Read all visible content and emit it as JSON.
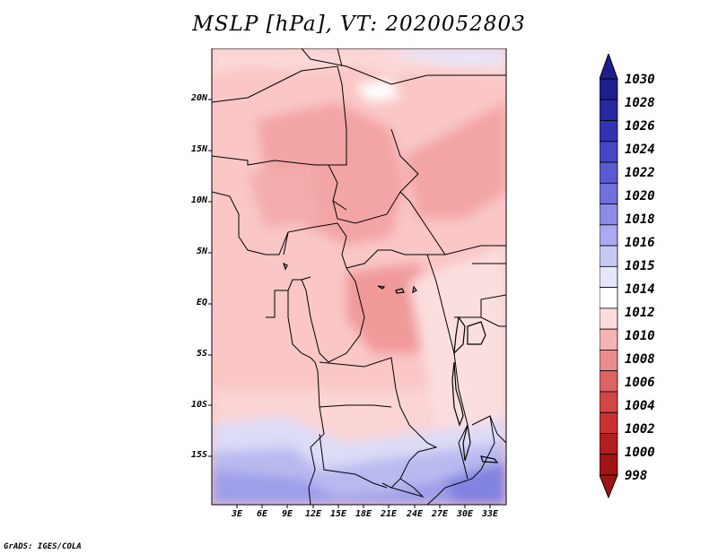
{
  "title": "MSLP [hPa], VT: 2020052803",
  "credit": "GrADS: IGES/COLA",
  "map": {
    "lat_labels": [
      "20N",
      "15N",
      "10N",
      "5N",
      "EQ",
      "5S",
      "10S",
      "15S"
    ],
    "lon_labels": [
      "3E",
      "6E",
      "9E",
      "12E",
      "15E",
      "18E",
      "21E",
      "24E",
      "27E",
      "30E",
      "33E"
    ]
  },
  "colorbar": {
    "labels": [
      "1030",
      "1028",
      "1026",
      "1024",
      "1022",
      "1020",
      "1018",
      "1016",
      "1015",
      "1014",
      "1012",
      "1010",
      "1008",
      "1006",
      "1004",
      "1002",
      "1000",
      "998"
    ],
    "colors": [
      "#1e1e8c",
      "#2828a0",
      "#3232b4",
      "#4646c8",
      "#5a5ad2",
      "#7070dc",
      "#8c8ce6",
      "#aaaaf0",
      "#c8c8f5",
      "#e6e6fa",
      "#ffffff",
      "#fadcdc",
      "#f5b4b4",
      "#eb8c8c",
      "#dc6464",
      "#d24646",
      "#c83232",
      "#b41e1e",
      "#a01414"
    ]
  }
}
